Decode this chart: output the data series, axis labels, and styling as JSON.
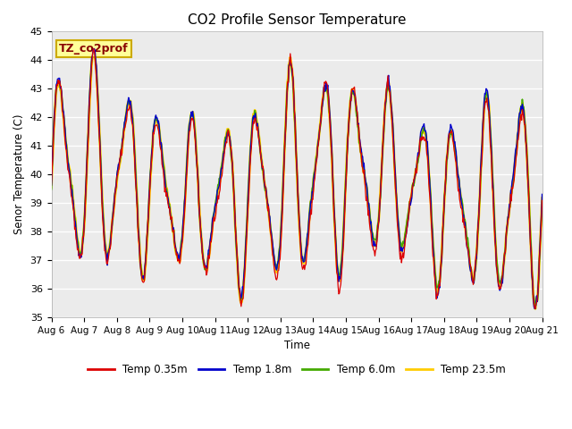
{
  "title": "CO2 Profile Sensor Temperature",
  "ylabel": "Senor Temperature (C)",
  "xlabel": "Time",
  "annotation": "TZ_co2prof",
  "ylim": [
    35.0,
    45.0
  ],
  "yticks": [
    35.0,
    36.0,
    37.0,
    38.0,
    39.0,
    40.0,
    41.0,
    42.0,
    43.0,
    44.0,
    45.0
  ],
  "colors": {
    "red": "#DD0000",
    "blue": "#0000CC",
    "green": "#44AA00",
    "orange": "#FFCC00"
  },
  "legend": [
    {
      "label": "Temp 0.35m",
      "color": "#DD0000"
    },
    {
      "label": "Temp 1.8m",
      "color": "#0000CC"
    },
    {
      "label": "Temp 6.0m",
      "color": "#44AA00"
    },
    {
      "label": "Temp 23.5m",
      "color": "#FFCC00"
    }
  ],
  "xtick_labels": [
    "Aug 6",
    "Aug 7",
    "Aug 8",
    "Aug 9",
    "Aug 10",
    "Aug 11",
    "Aug 12",
    "Aug 13",
    "Aug 14",
    "Aug 15",
    "Aug 16",
    "Aug 17",
    "Aug 18",
    "Aug 19",
    "Aug 20",
    "Aug 21"
  ],
  "axes_background": "#EBEBEB",
  "grid_color": "#FFFFFF",
  "annotation_bg": "#FFFF99",
  "annotation_border": "#CCAA00"
}
